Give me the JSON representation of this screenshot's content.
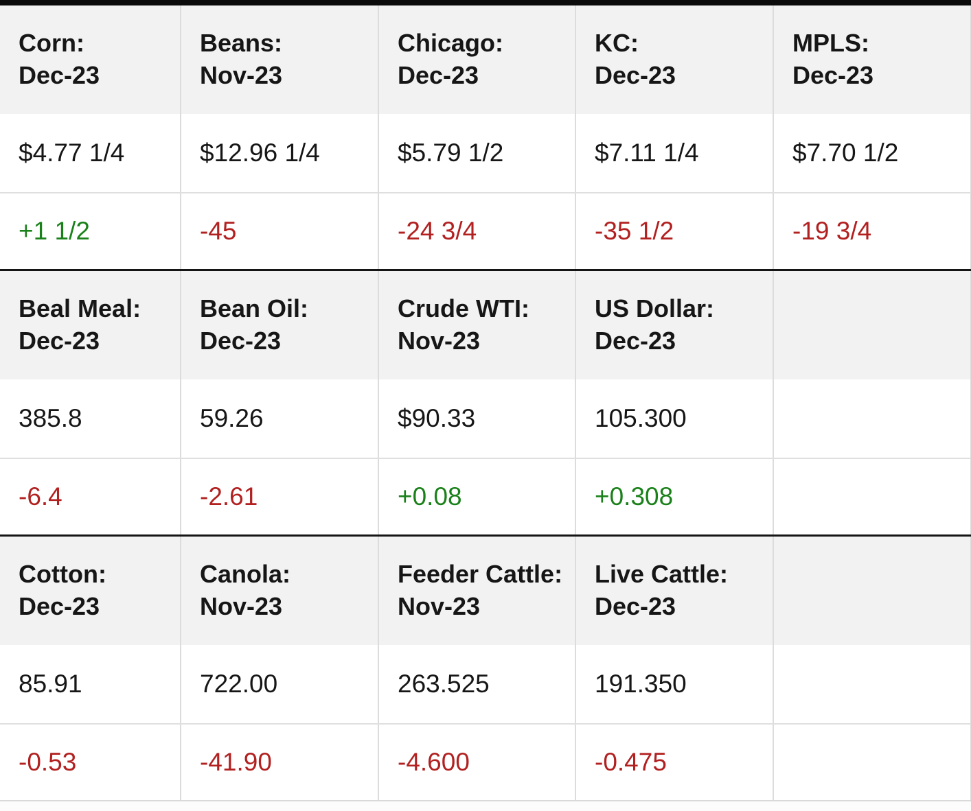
{
  "colors": {
    "positive_change": "#1a811a",
    "negative_change": "#b22020",
    "header_band_bg": "#f2f2f2",
    "group_divider": "#151515"
  },
  "chart_data": {
    "type": "table",
    "description_columns": [
      "contract",
      "month",
      "price",
      "change"
    ],
    "groups": [
      {
        "cells": [
          {
            "title": "Corn:",
            "month": "Dec-23",
            "price": "$4.77 1/4",
            "change": "+1 1/2",
            "dir": "up"
          },
          {
            "title": "Beans:",
            "month": "Nov-23",
            "price": "$12.96 1/4",
            "change": "-45",
            "dir": "down"
          },
          {
            "title": "Chicago:",
            "month": "Dec-23",
            "price": "$5.79 1/2",
            "change": "-24 3/4",
            "dir": "down"
          },
          {
            "title": "KC:",
            "month": "Dec-23",
            "price": "$7.11 1/4",
            "change": "-35 1/2",
            "dir": "down"
          },
          {
            "title": "MPLS:",
            "month": "Dec-23",
            "price": "$7.70 1/2",
            "change": "-19 3/4",
            "dir": "down"
          }
        ]
      },
      {
        "cells": [
          {
            "title": "Beal Meal:",
            "month": "Dec-23",
            "price": "385.8",
            "change": "-6.4",
            "dir": "down"
          },
          {
            "title": "Bean Oil:",
            "month": "Dec-23",
            "price": "59.26",
            "change": "-2.61",
            "dir": "down"
          },
          {
            "title": "Crude WTI:",
            "month": "Nov-23",
            "price": "$90.33",
            "change": "+0.08",
            "dir": "up"
          },
          {
            "title": "US Dollar:",
            "month": "Dec-23",
            "price": "105.300",
            "change": "+0.308",
            "dir": "up"
          },
          {
            "title": "",
            "month": "",
            "price": "",
            "change": "",
            "dir": ""
          }
        ]
      },
      {
        "cells": [
          {
            "title": "Cotton:",
            "month": "Dec-23",
            "price": "85.91",
            "change": "-0.53",
            "dir": "down"
          },
          {
            "title": "Canola:",
            "month": "Nov-23",
            "price": "722.00",
            "change": "-41.90",
            "dir": "down"
          },
          {
            "title": "Feeder Cattle:",
            "month": "Nov-23",
            "price": "263.525",
            "change": "-4.600",
            "dir": "down"
          },
          {
            "title": "Live Cattle:",
            "month": "Dec-23",
            "price": "191.350",
            "change": "-0.475",
            "dir": "down"
          },
          {
            "title": "",
            "month": "",
            "price": "",
            "change": "",
            "dir": ""
          }
        ]
      }
    ]
  }
}
